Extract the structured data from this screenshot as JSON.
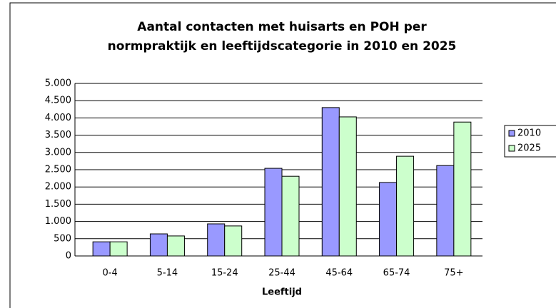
{
  "chart_data": {
    "type": "bar",
    "title": [
      "Aantal contacten met huisarts en POH per",
      "normpraktijk en leeftijdscategorie in 2010 en 2025"
    ],
    "x_label": "Leeftijd",
    "categories": [
      "0-4",
      "5-14",
      "15-24",
      "25-44",
      "45-64",
      "65-74",
      "75+"
    ],
    "series": [
      {
        "name": "2010",
        "color": "#9999ff",
        "values": [
          410,
          640,
          930,
          2540,
          4300,
          2130,
          2620
        ]
      },
      {
        "name": "2025",
        "color": "#ccffcc",
        "values": [
          410,
          580,
          870,
          2310,
          4030,
          2890,
          3880
        ]
      }
    ],
    "ylim": [
      0,
      5000
    ],
    "yticks": [
      0,
      500,
      {
        "value": 1000,
        "label": "1.000"
      },
      {
        "value": 1500,
        "label": "1.500"
      },
      {
        "value": 2000,
        "label": "2.000"
      },
      {
        "value": 2500,
        "label": "2.500"
      },
      {
        "value": 3000,
        "label": "3.000"
      },
      {
        "value": 3500,
        "label": "3.500"
      },
      {
        "value": 4000,
        "label": "4.000"
      },
      {
        "value": 4500,
        "label": "4.500"
      },
      {
        "value": 5000,
        "label": "5.000"
      }
    ],
    "grid": true,
    "legend": "right"
  }
}
